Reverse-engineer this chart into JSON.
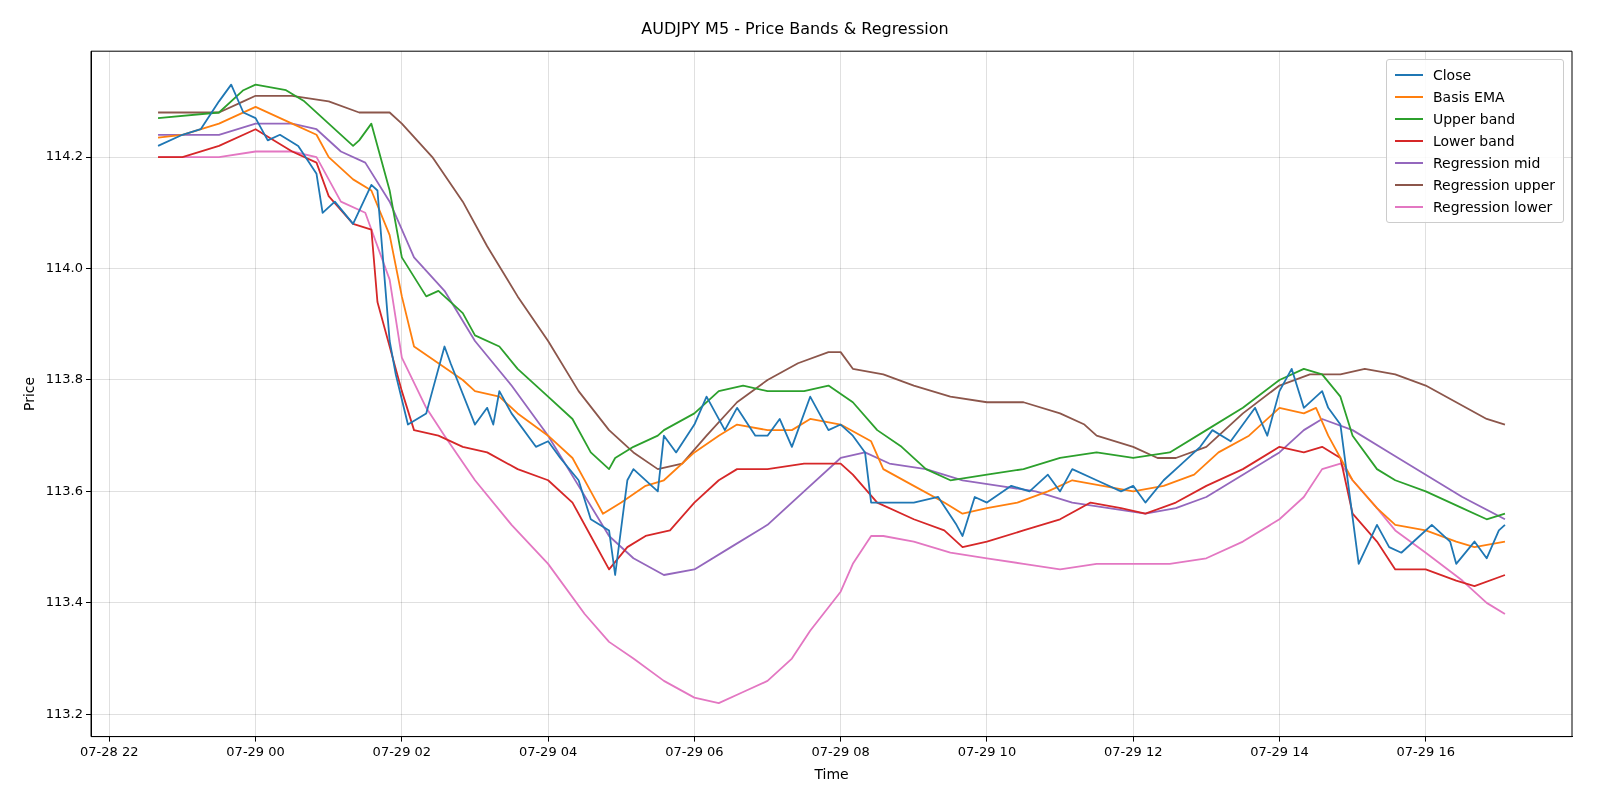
{
  "chart_data": {
    "type": "line",
    "title": "AUDJPY M5 - Price Bands & Regression",
    "xlabel": "Time",
    "ylabel": "Price",
    "xlim": [
      "--07-28T21:45",
      "--07-29T18:00"
    ],
    "ylim": [
      113.16,
      114.39
    ],
    "xticks": [
      {
        "value": "--07-28T22:00",
        "label": "07-28 22"
      },
      {
        "value": "--07-29T00:00",
        "label": "07-29 00"
      },
      {
        "value": "--07-29T02:00",
        "label": "07-29 02"
      },
      {
        "value": "--07-29T04:00",
        "label": "07-29 04"
      },
      {
        "value": "--07-29T06:00",
        "label": "07-29 06"
      },
      {
        "value": "--07-29T08:00",
        "label": "07-29 08"
      },
      {
        "value": "--07-29T10:00",
        "label": "07-29 10"
      },
      {
        "value": "--07-29T12:00",
        "label": "07-29 12"
      },
      {
        "value": "--07-29T14:00",
        "label": "07-29 14"
      },
      {
        "value": "--07-29T16:00",
        "label": "07-29 16"
      }
    ],
    "yticks": [
      {
        "value": 113.2,
        "label": "113.2"
      },
      {
        "value": 113.4,
        "label": "113.4"
      },
      {
        "value": 113.6,
        "label": "113.6"
      },
      {
        "value": 113.8,
        "label": "113.8"
      },
      {
        "value": 114.0,
        "label": "114.0"
      },
      {
        "value": 114.2,
        "label": "114.2"
      }
    ],
    "grid": true,
    "legend": "top right",
    "marker": "none",
    "line_style": "solid",
    "series": [
      {
        "name": "Close",
        "color": "#1f77b4",
        "x": [
          "--07-28T22:40",
          "--07-28T23:00",
          "--07-28T23:15",
          "--07-28T23:30",
          "--07-28T23:40",
          "--07-28T23:50",
          "--07-29T00:00",
          "--07-29T00:10",
          "--07-29T00:20",
          "--07-29T00:35",
          "--07-29T00:50",
          "--07-29T00:55",
          "--07-29T01:05",
          "--07-29T01:20",
          "--07-29T01:35",
          "--07-29T01:40",
          "--07-29T01:50",
          "--07-29T01:55",
          "--07-29T02:05",
          "--07-29T02:20",
          "--07-29T02:25",
          "--07-29T02:35",
          "--07-29T02:40",
          "--07-29T03:00",
          "--07-29T03:10",
          "--07-29T03:15",
          "--07-29T03:20",
          "--07-29T03:30",
          "--07-29T03:50",
          "--07-29T04:00",
          "--07-29T04:10",
          "--07-29T04:25",
          "--07-29T04:35",
          "--07-29T04:50",
          "--07-29T04:55",
          "--07-29T05:05",
          "--07-29T05:10",
          "--07-29T05:25",
          "--07-29T05:30",
          "--07-29T05:35",
          "--07-29T05:45",
          "--07-29T06:00",
          "--07-29T06:10",
          "--07-29T06:25",
          "--07-29T06:35",
          "--07-29T06:50",
          "--07-29T07:00",
          "--07-29T07:10",
          "--07-29T07:20",
          "--07-29T07:35",
          "--07-29T07:50",
          "--07-29T08:00",
          "--07-29T08:10",
          "--07-29T08:20",
          "--07-29T08:25",
          "--07-29T08:40",
          "--07-29T09:00",
          "--07-29T09:20",
          "--07-29T09:35",
          "--07-29T09:40",
          "--07-29T09:50",
          "--07-29T10:00",
          "--07-29T10:20",
          "--07-29T10:35",
          "--07-29T10:50",
          "--07-29T11:00",
          "--07-29T11:10",
          "--07-29T11:30",
          "--07-29T11:50",
          "--07-29T12:00",
          "--07-29T12:10",
          "--07-29T12:25",
          "--07-29T12:40",
          "--07-29T12:55",
          "--07-29T13:05",
          "--07-29T13:20",
          "--07-29T13:30",
          "--07-29T13:40",
          "--07-29T13:50",
          "--07-29T14:00",
          "--07-29T14:10",
          "--07-29T14:20",
          "--07-29T14:35",
          "--07-29T14:40",
          "--07-29T14:50",
          "--07-29T15:05",
          "--07-29T15:20",
          "--07-29T15:30",
          "--07-29T15:40",
          "--07-29T15:55",
          "--07-29T16:05",
          "--07-29T16:20",
          "--07-29T16:25",
          "--07-29T16:40",
          "--07-29T16:50",
          "--07-29T17:00",
          "--07-29T17:05"
        ],
        "values": [
          114.22,
          114.24,
          114.25,
          114.3,
          114.33,
          114.28,
          114.27,
          114.23,
          114.24,
          114.22,
          114.17,
          114.1,
          114.12,
          114.08,
          114.15,
          114.14,
          113.87,
          113.81,
          113.72,
          113.74,
          113.78,
          113.86,
          113.83,
          113.72,
          113.75,
          113.72,
          113.78,
          113.74,
          113.68,
          113.69,
          113.66,
          113.62,
          113.55,
          113.53,
          113.45,
          113.62,
          113.64,
          113.61,
          113.6,
          113.7,
          113.67,
          113.72,
          113.77,
          113.71,
          113.75,
          113.7,
          113.7,
          113.73,
          113.68,
          113.77,
          113.71,
          113.72,
          113.7,
          113.67,
          113.58,
          113.58,
          113.58,
          113.59,
          113.54,
          113.52,
          113.59,
          113.58,
          113.61,
          113.6,
          113.63,
          113.6,
          113.64,
          113.62,
          113.6,
          113.61,
          113.58,
          113.62,
          113.65,
          113.68,
          113.71,
          113.69,
          113.72,
          113.75,
          113.7,
          113.78,
          113.82,
          113.75,
          113.78,
          113.75,
          113.72,
          113.47,
          113.54,
          113.5,
          113.49,
          113.52,
          113.54,
          113.51,
          113.47,
          113.51,
          113.48,
          113.53,
          113.54
        ]
      },
      {
        "name": "Basis EMA",
        "color": "#ff7f0e",
        "x": [
          "--07-28T22:40",
          "--07-28T23:00",
          "--07-28T23:30",
          "--07-29T00:00",
          "--07-29T00:30",
          "--07-29T00:50",
          "--07-29T01:00",
          "--07-29T01:20",
          "--07-29T01:35",
          "--07-29T01:50",
          "--07-29T02:00",
          "--07-29T02:10",
          "--07-29T02:30",
          "--07-29T02:50",
          "--07-29T03:00",
          "--07-29T03:20",
          "--07-29T03:35",
          "--07-29T04:00",
          "--07-29T04:20",
          "--07-29T04:35",
          "--07-29T04:45",
          "--07-29T05:00",
          "--07-29T05:20",
          "--07-29T05:35",
          "--07-29T06:00",
          "--07-29T06:20",
          "--07-29T06:35",
          "--07-29T07:00",
          "--07-29T07:20",
          "--07-29T07:35",
          "--07-29T08:00",
          "--07-29T08:25",
          "--07-29T08:35",
          "--07-29T09:00",
          "--07-29T09:25",
          "--07-29T09:40",
          "--07-29T10:00",
          "--07-29T10:25",
          "--07-29T10:50",
          "--07-29T11:10",
          "--07-29T11:35",
          "--07-29T12:00",
          "--07-29T12:25",
          "--07-29T12:50",
          "--07-29T13:10",
          "--07-29T13:35",
          "--07-29T14:00",
          "--07-29T14:20",
          "--07-29T14:30",
          "--07-29T14:40",
          "--07-29T15:00",
          "--07-29T15:20",
          "--07-29T15:35",
          "--07-29T16:00",
          "--07-29T16:25",
          "--07-29T16:40",
          "--07-29T17:05"
        ],
        "values": [
          114.235,
          114.24,
          114.26,
          114.29,
          114.26,
          114.24,
          114.2,
          114.16,
          114.14,
          114.06,
          113.95,
          113.86,
          113.83,
          113.8,
          113.78,
          113.77,
          113.74,
          113.7,
          113.66,
          113.6,
          113.56,
          113.58,
          113.61,
          113.62,
          113.67,
          113.7,
          113.72,
          113.71,
          113.71,
          113.73,
          113.72,
          113.69,
          113.64,
          113.61,
          113.58,
          113.56,
          113.57,
          113.58,
          113.6,
          113.62,
          113.61,
          113.6,
          113.61,
          113.63,
          113.67,
          113.7,
          113.75,
          113.74,
          113.75,
          113.7,
          113.62,
          113.57,
          113.54,
          113.53,
          113.51,
          113.5,
          113.51
        ]
      },
      {
        "name": "Upper band",
        "color": "#2ca02c",
        "x": [
          "--07-28T22:40",
          "--07-28T23:30",
          "--07-28T23:50",
          "--07-29T00:00",
          "--07-29T00:25",
          "--07-29T00:40",
          "--07-29T01:00",
          "--07-29T01:20",
          "--07-29T01:25",
          "--07-29T01:35",
          "--07-29T01:50",
          "--07-29T02:00",
          "--07-29T02:20",
          "--07-29T02:30",
          "--07-29T02:50",
          "--07-29T03:00",
          "--07-29T03:20",
          "--07-29T03:35",
          "--07-29T04:00",
          "--07-29T04:20",
          "--07-29T04:35",
          "--07-29T04:50",
          "--07-29T04:55",
          "--07-29T05:10",
          "--07-29T05:30",
          "--07-29T05:35",
          "--07-29T06:00",
          "--07-29T06:20",
          "--07-29T06:40",
          "--07-29T07:00",
          "--07-29T07:30",
          "--07-29T07:50",
          "--07-29T08:10",
          "--07-29T08:30",
          "--07-29T08:50",
          "--07-29T09:10",
          "--07-29T09:30",
          "--07-29T10:00",
          "--07-29T10:30",
          "--07-29T11:00",
          "--07-29T11:30",
          "--07-29T12:00",
          "--07-29T12:30",
          "--07-29T13:00",
          "--07-29T13:30",
          "--07-29T14:00",
          "--07-29T14:20",
          "--07-29T14:35",
          "--07-29T14:50",
          "--07-29T15:00",
          "--07-29T15:20",
          "--07-29T15:35",
          "--07-29T16:00",
          "--07-29T16:30",
          "--07-29T16:50",
          "--07-29T17:05"
        ],
        "values": [
          114.27,
          114.28,
          114.32,
          114.33,
          114.32,
          114.3,
          114.26,
          114.22,
          114.23,
          114.26,
          114.14,
          114.02,
          113.95,
          113.96,
          113.92,
          113.88,
          113.86,
          113.82,
          113.77,
          113.73,
          113.67,
          113.64,
          113.66,
          113.68,
          113.7,
          113.71,
          113.74,
          113.78,
          113.79,
          113.78,
          113.78,
          113.79,
          113.76,
          113.71,
          113.68,
          113.64,
          113.62,
          113.63,
          113.64,
          113.66,
          113.67,
          113.66,
          113.67,
          113.71,
          113.75,
          113.8,
          113.82,
          113.81,
          113.77,
          113.7,
          113.64,
          113.62,
          113.6,
          113.57,
          113.55,
          113.56
        ]
      },
      {
        "name": "Lower band",
        "color": "#d62728",
        "x": [
          "--07-28T22:40",
          "--07-28T23:00",
          "--07-28T23:30",
          "--07-29T00:00",
          "--07-29T00:30",
          "--07-29T00:50",
          "--07-29T01:00",
          "--07-29T01:20",
          "--07-29T01:35",
          "--07-29T01:40",
          "--07-29T02:00",
          "--07-29T02:10",
          "--07-29T02:30",
          "--07-29T02:50",
          "--07-29T03:10",
          "--07-29T03:35",
          "--07-29T04:00",
          "--07-29T04:20",
          "--07-29T04:35",
          "--07-29T04:50",
          "--07-29T05:05",
          "--07-29T05:20",
          "--07-29T05:40",
          "--07-29T06:00",
          "--07-29T06:20",
          "--07-29T06:35",
          "--07-29T07:00",
          "--07-29T07:30",
          "--07-29T08:00",
          "--07-29T08:10",
          "--07-29T08:30",
          "--07-29T09:00",
          "--07-29T09:25",
          "--07-29T09:40",
          "--07-29T10:00",
          "--07-29T10:30",
          "--07-29T11:00",
          "--07-29T11:25",
          "--07-29T11:50",
          "--07-29T12:10",
          "--07-29T12:35",
          "--07-29T13:00",
          "--07-29T13:30",
          "--07-29T14:00",
          "--07-29T14:20",
          "--07-29T14:35",
          "--07-29T14:50",
          "--07-29T15:00",
          "--07-29T15:20",
          "--07-29T15:35",
          "--07-29T16:00",
          "--07-29T16:25",
          "--07-29T16:40",
          "--07-29T17:05"
        ],
        "values": [
          114.2,
          114.2,
          114.22,
          114.25,
          114.21,
          114.19,
          114.13,
          114.08,
          114.07,
          113.94,
          113.78,
          113.71,
          113.7,
          113.68,
          113.67,
          113.64,
          113.62,
          113.58,
          113.52,
          113.46,
          113.5,
          113.52,
          113.53,
          113.58,
          113.62,
          113.64,
          113.64,
          113.65,
          113.65,
          113.63,
          113.58,
          113.55,
          113.53,
          113.5,
          113.51,
          113.53,
          113.55,
          113.58,
          113.57,
          113.56,
          113.58,
          113.61,
          113.64,
          113.68,
          113.67,
          113.68,
          113.66,
          113.56,
          113.51,
          113.46,
          113.46,
          113.44,
          113.43,
          113.45
        ]
      },
      {
        "name": "Regression mid",
        "color": "#9467bd",
        "x": [
          "--07-28T22:40",
          "--07-28T23:30",
          "--07-29T00:00",
          "--07-29T00:30",
          "--07-29T00:50",
          "--07-29T01:10",
          "--07-29T01:30",
          "--07-29T01:50",
          "--07-29T02:10",
          "--07-29T02:35",
          "--07-29T03:00",
          "--07-29T03:30",
          "--07-29T04:00",
          "--07-29T04:25",
          "--07-29T04:50",
          "--07-29T05:10",
          "--07-29T05:35",
          "--07-29T06:00",
          "--07-29T06:30",
          "--07-29T07:00",
          "--07-29T07:30",
          "--07-29T08:00",
          "--07-29T08:20",
          "--07-29T08:40",
          "--07-29T09:10",
          "--07-29T09:40",
          "--07-29T10:10",
          "--07-29T10:40",
          "--07-29T11:10",
          "--07-29T11:40",
          "--07-29T12:10",
          "--07-29T12:35",
          "--07-29T13:00",
          "--07-29T13:30",
          "--07-29T14:00",
          "--07-29T14:20",
          "--07-29T14:35",
          "--07-29T15:00",
          "--07-29T15:30",
          "--07-29T16:00",
          "--07-29T16:30",
          "--07-29T17:05"
        ],
        "values": [
          114.24,
          114.24,
          114.26,
          114.26,
          114.25,
          114.21,
          114.19,
          114.12,
          114.02,
          113.96,
          113.87,
          113.79,
          113.7,
          113.61,
          113.52,
          113.48,
          113.45,
          113.46,
          113.5,
          113.54,
          113.6,
          113.66,
          113.67,
          113.65,
          113.64,
          113.62,
          113.61,
          113.6,
          113.58,
          113.57,
          113.56,
          113.57,
          113.59,
          113.63,
          113.67,
          113.71,
          113.73,
          113.71,
          113.67,
          113.63,
          113.59,
          113.55
        ]
      },
      {
        "name": "Regression upper",
        "color": "#8c564b",
        "x": [
          "--07-28T22:40",
          "--07-28T23:30",
          "--07-28T23:50",
          "--07-29T00:00",
          "--07-29T00:30",
          "--07-29T01:00",
          "--07-29T01:25",
          "--07-29T01:35",
          "--07-29T01:50",
          "--07-29T02:00",
          "--07-29T02:25",
          "--07-29T02:50",
          "--07-29T03:10",
          "--07-29T03:35",
          "--07-29T04:00",
          "--07-29T04:25",
          "--07-29T04:50",
          "--07-29T05:10",
          "--07-29T05:30",
          "--07-29T05:50",
          "--07-29T06:10",
          "--07-29T06:35",
          "--07-29T07:00",
          "--07-29T07:25",
          "--07-29T07:50",
          "--07-29T08:00",
          "--07-29T08:10",
          "--07-29T08:35",
          "--07-29T09:00",
          "--07-29T09:30",
          "--07-29T10:00",
          "--07-29T10:30",
          "--07-29T11:00",
          "--07-29T11:20",
          "--07-29T11:30",
          "--07-29T12:00",
          "--07-29T12:20",
          "--07-29T12:35",
          "--07-29T13:00",
          "--07-29T13:30",
          "--07-29T14:00",
          "--07-29T14:25",
          "--07-29T14:50",
          "--07-29T15:10",
          "--07-29T15:35",
          "--07-29T16:00",
          "--07-29T16:25",
          "--07-29T16:50",
          "--07-29T17:05"
        ],
        "values": [
          114.28,
          114.28,
          114.3,
          114.31,
          114.31,
          114.3,
          114.28,
          114.28,
          114.28,
          114.26,
          114.2,
          114.12,
          114.04,
          113.95,
          113.87,
          113.78,
          113.71,
          113.67,
          113.64,
          113.65,
          113.7,
          113.76,
          113.8,
          113.83,
          113.85,
          113.85,
          113.82,
          113.81,
          113.79,
          113.77,
          113.76,
          113.76,
          113.74,
          113.72,
          113.7,
          113.68,
          113.66,
          113.66,
          113.68,
          113.74,
          113.79,
          113.81,
          113.81,
          113.82,
          113.81,
          113.79,
          113.76,
          113.73,
          113.72
        ]
      },
      {
        "name": "Regression lower",
        "color": "#e377c2",
        "x": [
          "--07-28T22:40",
          "--07-28T23:30",
          "--07-29T00:00",
          "--07-29T00:30",
          "--07-29T00:50",
          "--07-29T01:10",
          "--07-29T01:30",
          "--07-29T01:50",
          "--07-29T02:00",
          "--07-29T02:20",
          "--07-29T02:35",
          "--07-29T03:00",
          "--07-29T03:30",
          "--07-29T04:00",
          "--07-29T04:30",
          "--07-29T04:50",
          "--07-29T05:10",
          "--07-29T05:35",
          "--07-29T06:00",
          "--07-29T06:20",
          "--07-29T06:40",
          "--07-29T07:00",
          "--07-29T07:20",
          "--07-29T07:35",
          "--07-29T08:00",
          "--07-29T08:10",
          "--07-29T08:25",
          "--07-29T08:35",
          "--07-29T09:00",
          "--07-29T09:30",
          "--07-29T10:00",
          "--07-29T10:30",
          "--07-29T11:00",
          "--07-29T11:30",
          "--07-29T12:00",
          "--07-29T12:30",
          "--07-29T13:00",
          "--07-29T13:30",
          "--07-29T14:00",
          "--07-29T14:20",
          "--07-29T14:35",
          "--07-29T14:50",
          "--07-29T15:00",
          "--07-29T15:20",
          "--07-29T15:35",
          "--07-29T16:00",
          "--07-29T16:30",
          "--07-29T16:50",
          "--07-29T17:05"
        ],
        "values": [
          114.2,
          114.2,
          114.21,
          114.21,
          114.2,
          114.12,
          114.1,
          113.98,
          113.84,
          113.75,
          113.7,
          113.62,
          113.54,
          113.47,
          113.38,
          113.33,
          113.3,
          113.26,
          113.23,
          113.22,
          113.24,
          113.26,
          113.3,
          113.35,
          113.42,
          113.47,
          113.52,
          113.52,
          113.51,
          113.49,
          113.48,
          113.47,
          113.46,
          113.47,
          113.47,
          113.47,
          113.48,
          113.51,
          113.55,
          113.59,
          113.64,
          113.65,
          113.62,
          113.57,
          113.53,
          113.49,
          113.44,
          113.4,
          113.38
        ]
      }
    ]
  }
}
